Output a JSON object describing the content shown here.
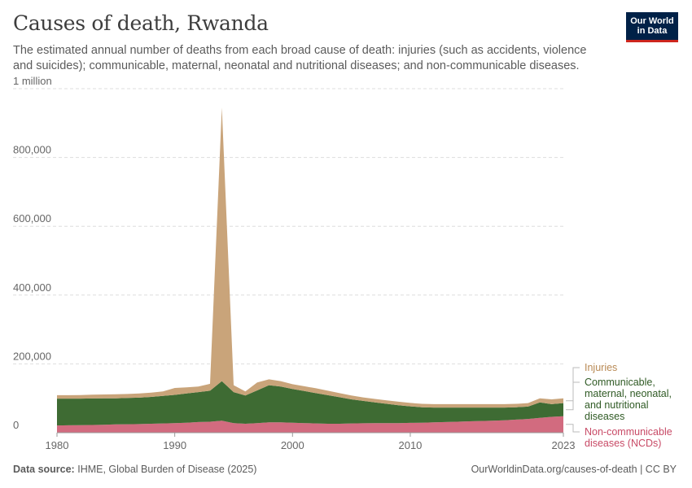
{
  "title": "Causes of death, Rwanda",
  "subtitle": "The estimated annual number of deaths from each broad cause of death: injuries (such as accidents, violence and suicides); communicable, maternal, neonatal and nutritional diseases; and non-communicable diseases.",
  "logo": {
    "line1": "Our World",
    "line2": "in Data"
  },
  "footer": {
    "source_label": "Data source:",
    "source_text": "IHME, Global Burden of Disease (2025)",
    "url": "OurWorldinData.org/causes-of-death | CC BY"
  },
  "colors": {
    "ncd": "#d26b7f",
    "communicable": "#3e6b33",
    "injuries": "#c9a47a",
    "grid": "#dddddd"
  },
  "chart_data": {
    "type": "area",
    "stacked": true,
    "title": "Causes of death, Rwanda",
    "xlabel": "",
    "ylabel": "",
    "xlim": [
      1980,
      2023
    ],
    "ylim": [
      0,
      1000000
    ],
    "x_ticks": [
      {
        "value": 1980,
        "label": "1980"
      },
      {
        "value": 1990,
        "label": "1990"
      },
      {
        "value": 2000,
        "label": "2000"
      },
      {
        "value": 2010,
        "label": "2010"
      },
      {
        "value": 2023,
        "label": "2023"
      }
    ],
    "y_ticks": [
      {
        "value": 0,
        "label": "0"
      },
      {
        "value": 200000,
        "label": "200,000"
      },
      {
        "value": 400000,
        "label": "400,000"
      },
      {
        "value": 600000,
        "label": "600,000"
      },
      {
        "value": 800000,
        "label": "800,000"
      },
      {
        "value": 1000000,
        "label": "1 million"
      }
    ],
    "x": [
      1980,
      1981,
      1982,
      1983,
      1984,
      1985,
      1986,
      1987,
      1988,
      1989,
      1990,
      1991,
      1992,
      1993,
      1994,
      1995,
      1996,
      1997,
      1998,
      1999,
      2000,
      2001,
      2002,
      2003,
      2004,
      2005,
      2006,
      2007,
      2008,
      2009,
      2010,
      2011,
      2012,
      2013,
      2014,
      2015,
      2016,
      2017,
      2018,
      2019,
      2020,
      2021,
      2022,
      2023
    ],
    "series": [
      {
        "name": "Non-communicable diseases (NCDs)",
        "legend": "Non-communicable diseases (NCDs)",
        "color_key": "ncd",
        "values": [
          21000,
          21500,
          22000,
          22500,
          23000,
          24000,
          24500,
          25000,
          26000,
          27000,
          28000,
          29000,
          31000,
          32000,
          35000,
          28000,
          26000,
          28000,
          30000,
          30000,
          29000,
          28000,
          27000,
          26000,
          26000,
          27000,
          27500,
          28000,
          28000,
          28000,
          28500,
          29000,
          30000,
          31000,
          32000,
          33000,
          34000,
          35000,
          36000,
          38000,
          40000,
          43000,
          46000,
          48000
        ]
      },
      {
        "name": "Communicable, maternal, neonatal, and nutritional diseases",
        "legend": "Communicable, maternal, neonatal, and nutritional diseases",
        "color_key": "communicable",
        "values": [
          78000,
          77500,
          77000,
          77000,
          77000,
          76000,
          76500,
          77000,
          78000,
          80000,
          82000,
          85000,
          87000,
          90000,
          115000,
          90000,
          82000,
          95000,
          108000,
          104000,
          98000,
          93000,
          88000,
          83000,
          77000,
          70000,
          65000,
          60000,
          56000,
          52000,
          48000,
          45000,
          43000,
          42000,
          41000,
          40000,
          39000,
          38000,
          37000,
          36000,
          36000,
          45000,
          37000,
          38000
        ]
      },
      {
        "name": "Injuries",
        "legend": "Injuries",
        "color_key": "injuries",
        "values": [
          10000,
          10000,
          10500,
          11000,
          11000,
          11500,
          11500,
          12000,
          12500,
          13000,
          20000,
          18000,
          16000,
          20000,
          795000,
          20000,
          12000,
          23000,
          17000,
          16000,
          14000,
          14000,
          14000,
          13000,
          12000,
          11000,
          10000,
          10000,
          10000,
          10000,
          10000,
          10000,
          10000,
          10000,
          10000,
          10000,
          10000,
          10000,
          10000,
          10000,
          10000,
          12000,
          14000,
          14000
        ]
      }
    ]
  }
}
